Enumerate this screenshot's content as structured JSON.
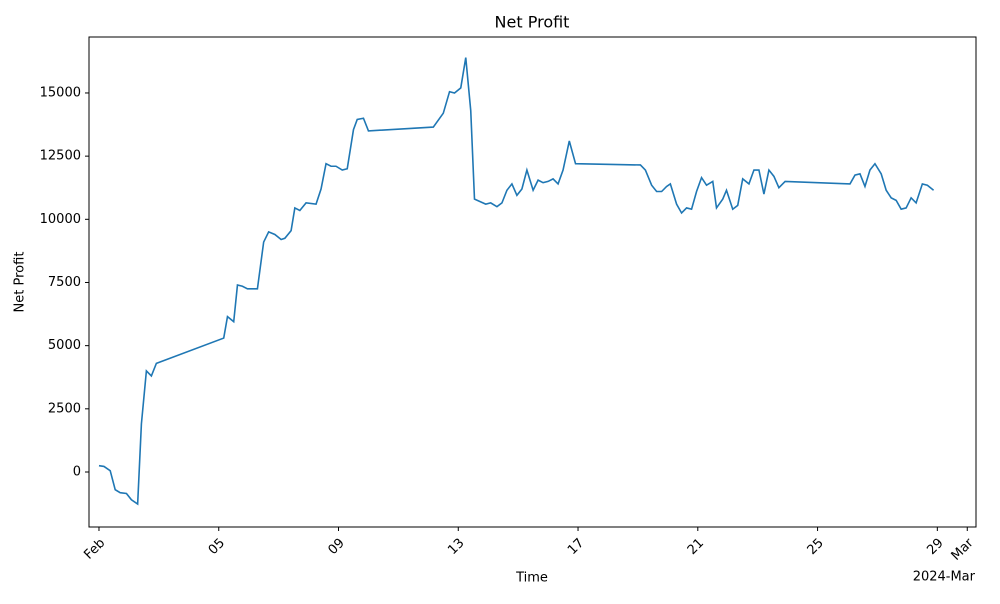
{
  "chart_data": {
    "type": "line",
    "title": "Net Profit",
    "x_label": "Time",
    "y_label": "Net Profit",
    "x_offset_label": "2024-Mar",
    "grid": false,
    "xlim": [
      "2024-01-31T16:00",
      "2024-03-01T07:00"
    ],
    "xticks": [
      {
        "value": "2024-02-01T00:00",
        "label": "Feb"
      },
      {
        "value": "2024-02-05T00:00",
        "label": "05"
      },
      {
        "value": "2024-02-09T00:00",
        "label": "09"
      },
      {
        "value": "2024-02-13T00:00",
        "label": "13"
      },
      {
        "value": "2024-02-17T00:00",
        "label": "17"
      },
      {
        "value": "2024-02-21T00:00",
        "label": "21"
      },
      {
        "value": "2024-02-25T00:00",
        "label": "25"
      },
      {
        "value": "2024-02-29T00:00",
        "label": "29"
      },
      {
        "value": "2024-03-01T00:00",
        "label": "Mar"
      }
    ],
    "ylim": [
      -2177,
      17215
    ],
    "yticks": [
      0,
      2500,
      5000,
      7500,
      10000,
      12500,
      15000
    ],
    "x": [
      "2024-02-01T00:00",
      "2024-02-01T04:00",
      "2024-02-01T09:00",
      "2024-02-01T13:00",
      "2024-02-01T17:00",
      "2024-02-01T22:00",
      "2024-02-02T02:00",
      "2024-02-02T07:00",
      "2024-02-02T10:00",
      "2024-02-02T14:00",
      "2024-02-02T18:00",
      "2024-02-02T22:00",
      "2024-02-05T04:00",
      "2024-02-05T07:00",
      "2024-02-05T12:00",
      "2024-02-05T15:00",
      "2024-02-05T19:00",
      "2024-02-05T23:00",
      "2024-02-06T07:00",
      "2024-02-06T12:00",
      "2024-02-06T16:00",
      "2024-02-06T21:00",
      "2024-02-07T02:00",
      "2024-02-07T05:00",
      "2024-02-07T10:00",
      "2024-02-07T13:00",
      "2024-02-07T17:00",
      "2024-02-07T22:00",
      "2024-02-08T06:00",
      "2024-02-08T10:00",
      "2024-02-08T14:00",
      "2024-02-08T18:00",
      "2024-02-08T22:00",
      "2024-02-09T03:00",
      "2024-02-09T07:00",
      "2024-02-09T12:00",
      "2024-02-09T15:00",
      "2024-02-09T20:00",
      "2024-02-10T00:00",
      "2024-02-12T04:00",
      "2024-02-12T12:00",
      "2024-02-12T17:00",
      "2024-02-12T21:00",
      "2024-02-13T02:00",
      "2024-02-13T06:00",
      "2024-02-13T10:00",
      "2024-02-13T13:00",
      "2024-02-13T22:00",
      "2024-02-14T02:00",
      "2024-02-14T07:00",
      "2024-02-14T11:00",
      "2024-02-14T15:00",
      "2024-02-14T19:00",
      "2024-02-14T23:00",
      "2024-02-15T03:00",
      "2024-02-15T07:00",
      "2024-02-15T12:00",
      "2024-02-15T16:00",
      "2024-02-15T20:00",
      "2024-02-16T00:00",
      "2024-02-16T04:00",
      "2024-02-16T08:00",
      "2024-02-16T12:00",
      "2024-02-16T17:00",
      "2024-02-16T22:00",
      "2024-02-19T02:00",
      "2024-02-19T06:00",
      "2024-02-19T11:00",
      "2024-02-19T15:00",
      "2024-02-19T19:00",
      "2024-02-19T23:00",
      "2024-02-20T02:00",
      "2024-02-20T07:00",
      "2024-02-20T11:00",
      "2024-02-20T15:00",
      "2024-02-20T19:00",
      "2024-02-20T23:00",
      "2024-02-21T03:00",
      "2024-02-21T07:00",
      "2024-02-21T12:00",
      "2024-02-21T15:00",
      "2024-02-21T20:00",
      "2024-02-21T23:00",
      "2024-02-22T04:00",
      "2024-02-22T08:00",
      "2024-02-22T12:00",
      "2024-02-22T17:00",
      "2024-02-22T21:00",
      "2024-02-23T01:00",
      "2024-02-23T05:00",
      "2024-02-23T09:00",
      "2024-02-23T13:00",
      "2024-02-23T17:00",
      "2024-02-23T22:00",
      "2024-02-26T02:00",
      "2024-02-26T06:00",
      "2024-02-26T10:00",
      "2024-02-26T14:00",
      "2024-02-26T18:00",
      "2024-02-26T22:00",
      "2024-02-27T03:00",
      "2024-02-27T07:00",
      "2024-02-27T11:00",
      "2024-02-27T15:00",
      "2024-02-27T19:00",
      "2024-02-27T23:00",
      "2024-02-28T03:00",
      "2024-02-28T07:00",
      "2024-02-28T12:00",
      "2024-02-28T16:00",
      "2024-02-28T21:00"
    ],
    "series": [
      {
        "name": "Net Profit",
        "color": "#1f77b4",
        "values": [
          250,
          220,
          50,
          -700,
          -820,
          -850,
          -1100,
          -1270,
          1900,
          4000,
          3800,
          4300,
          5300,
          6150,
          5950,
          7400,
          7350,
          7250,
          7250,
          9100,
          9500,
          9400,
          9200,
          9250,
          9550,
          10450,
          10350,
          10650,
          10600,
          11200,
          12200,
          12100,
          12100,
          11950,
          12000,
          13550,
          13950,
          14000,
          13500,
          13650,
          14200,
          15050,
          15000,
          15200,
          16400,
          14300,
          10800,
          10600,
          10650,
          10500,
          10650,
          11150,
          11400,
          10950,
          11200,
          11950,
          11150,
          11550,
          11450,
          11500,
          11600,
          11400,
          11950,
          13100,
          12200,
          12150,
          11950,
          11350,
          11100,
          11100,
          11300,
          11400,
          10600,
          10250,
          10450,
          10400,
          11100,
          11650,
          11350,
          11500,
          10450,
          10800,
          11150,
          10400,
          10550,
          11600,
          11400,
          11950,
          11950,
          11000,
          11950,
          11700,
          11250,
          11500,
          11400,
          11750,
          11800,
          11300,
          11950,
          12200,
          11800,
          11150,
          10850,
          10750,
          10400,
          10450,
          10850,
          10650,
          11400,
          11350,
          11150
        ]
      }
    ]
  }
}
